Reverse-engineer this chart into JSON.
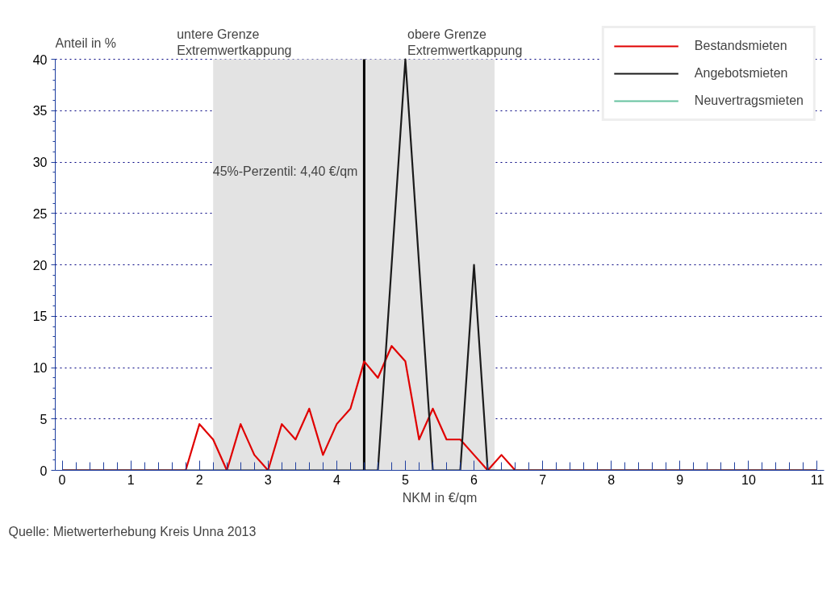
{
  "chart_data": {
    "type": "line",
    "xlabel": "NKM in €/qm",
    "ylabel": "Anteil in %",
    "series": [
      {
        "name": "Bestandsmieten",
        "color": "#e00000",
        "x": [
          0,
          1.8,
          2.0,
          2.2,
          2.4,
          2.6,
          2.8,
          3.0,
          3.2,
          3.4,
          3.6,
          3.8,
          4.0,
          4.2,
          4.4,
          4.6,
          4.8,
          5.0,
          5.2,
          5.4,
          5.6,
          5.8,
          6.0,
          6.2,
          6.4,
          6.6,
          11
        ],
        "values": [
          0,
          0,
          4.5,
          3,
          0,
          4.5,
          1.5,
          0,
          4.5,
          3,
          6,
          1.5,
          4.5,
          6,
          10.6,
          9,
          12.1,
          10.6,
          3,
          6,
          3,
          3,
          1.5,
          0,
          1.5,
          0,
          0
        ]
      },
      {
        "name": "Angebotsmieten",
        "color": "#1a1a1a",
        "x": [
          0,
          4.6,
          5.0,
          5.4,
          5.8,
          6.0,
          6.2,
          11
        ],
        "values": [
          0,
          0,
          40,
          0,
          0,
          20,
          0,
          0
        ]
      },
      {
        "name": "Neuvertragsmieten",
        "color": "#66c2a0"
      }
    ],
    "xlim": [
      -0.1,
      11.1
    ],
    "xticks": [
      0,
      1,
      2,
      3,
      4,
      5,
      6,
      7,
      8,
      9,
      10,
      11
    ],
    "ylim": [
      0,
      40
    ],
    "yticks": [
      0,
      5,
      10,
      15,
      20,
      25,
      30,
      35,
      40
    ],
    "grid": "y",
    "legend": "top right",
    "line_style": "solid",
    "marker": "none",
    "ref_lines": [
      {
        "axis": "x",
        "value": 4.4,
        "label": "45%-Perzentil: 4,40 €/qm",
        "color": "#000000"
      }
    ],
    "bands": [
      {
        "axis": "x",
        "from": 2.2,
        "to": 6.3,
        "color": "#e3e3e3"
      }
    ],
    "annotations": [
      {
        "text": "untere Grenze\nExtremwertkappung",
        "x": 2.2,
        "y": 40
      },
      {
        "text": "obere Grenze\nExtremwertkappung",
        "x": 6.3,
        "y": 40
      },
      "Quelle: Mietwerterhebung Kreis Unna 2013"
    ]
  }
}
